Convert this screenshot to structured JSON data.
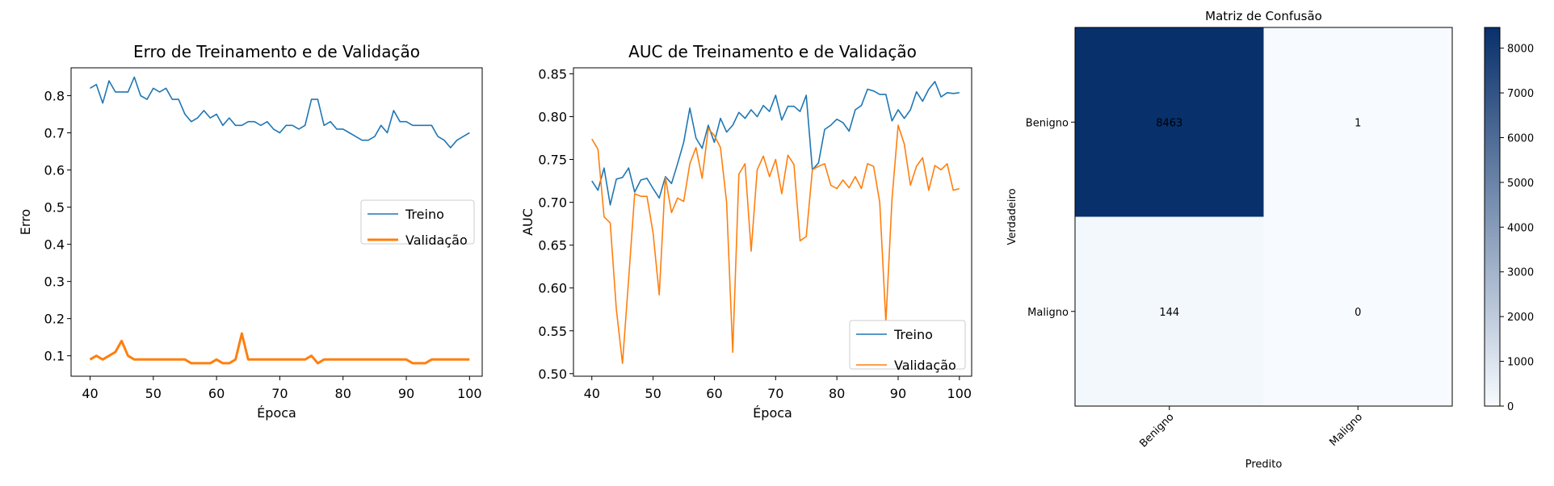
{
  "chart_data": [
    {
      "type": "line",
      "title": "Erro de Treinamento e de Validação",
      "xlabel": "Época",
      "ylabel": "Erro",
      "xlim": [
        37,
        102
      ],
      "ylim": [
        0.045,
        0.875
      ],
      "xticks": [
        40,
        50,
        60,
        70,
        80,
        90,
        100
      ],
      "yticks": [
        0.1,
        0.2,
        0.3,
        0.4,
        0.5,
        0.6,
        0.7,
        0.8
      ],
      "legend_position": "center-right",
      "grid": false,
      "x": [
        40,
        41,
        42,
        43,
        44,
        45,
        46,
        47,
        48,
        49,
        50,
        51,
        52,
        53,
        54,
        55,
        56,
        57,
        58,
        59,
        60,
        61,
        62,
        63,
        64,
        65,
        66,
        67,
        68,
        69,
        70,
        71,
        72,
        73,
        74,
        75,
        76,
        77,
        78,
        79,
        80,
        81,
        82,
        83,
        84,
        85,
        86,
        87,
        88,
        89,
        90,
        91,
        92,
        93,
        94,
        95,
        96,
        97,
        98,
        99,
        100
      ],
      "series": [
        {
          "name": "Treino",
          "color": "#1f77b4",
          "width": 1.6,
          "values": [
            0.82,
            0.83,
            0.78,
            0.84,
            0.81,
            0.81,
            0.81,
            0.85,
            0.8,
            0.79,
            0.82,
            0.81,
            0.82,
            0.79,
            0.79,
            0.75,
            0.73,
            0.74,
            0.76,
            0.74,
            0.75,
            0.72,
            0.74,
            0.72,
            0.72,
            0.73,
            0.73,
            0.72,
            0.73,
            0.71,
            0.7,
            0.72,
            0.72,
            0.71,
            0.72,
            0.79,
            0.79,
            0.72,
            0.73,
            0.71,
            0.71,
            0.7,
            0.69,
            0.68,
            0.68,
            0.69,
            0.72,
            0.7,
            0.76,
            0.73,
            0.73,
            0.72,
            0.72,
            0.72,
            0.72,
            0.69,
            0.68,
            0.66,
            0.68,
            0.69,
            0.7
          ]
        },
        {
          "name": "Validação",
          "color": "#ff7f0e",
          "width": 3,
          "values": [
            0.09,
            0.1,
            0.09,
            0.1,
            0.11,
            0.14,
            0.1,
            0.09,
            0.09,
            0.09,
            0.09,
            0.09,
            0.09,
            0.09,
            0.09,
            0.09,
            0.08,
            0.08,
            0.08,
            0.08,
            0.09,
            0.08,
            0.08,
            0.09,
            0.16,
            0.09,
            0.09,
            0.09,
            0.09,
            0.09,
            0.09,
            0.09,
            0.09,
            0.09,
            0.09,
            0.1,
            0.08,
            0.09,
            0.09,
            0.09,
            0.09,
            0.09,
            0.09,
            0.09,
            0.09,
            0.09,
            0.09,
            0.09,
            0.09,
            0.09,
            0.09,
            0.08,
            0.08,
            0.08,
            0.09,
            0.09,
            0.09,
            0.09,
            0.09,
            0.09,
            0.09
          ]
        }
      ]
    },
    {
      "type": "line",
      "title": "AUC de Treinamento e de Validação",
      "xlabel": "Época",
      "ylabel": "AUC",
      "xlim": [
        37,
        102
      ],
      "ylim": [
        0.497,
        0.857
      ],
      "xticks": [
        40,
        50,
        60,
        70,
        80,
        90,
        100
      ],
      "yticks": [
        0.5,
        0.55,
        0.6,
        0.65,
        0.7,
        0.75,
        0.8,
        0.85
      ],
      "legend_position": "lower-right",
      "grid": false,
      "x": [
        40,
        41,
        42,
        43,
        44,
        45,
        46,
        47,
        48,
        49,
        50,
        51,
        52,
        53,
        54,
        55,
        56,
        57,
        58,
        59,
        60,
        61,
        62,
        63,
        64,
        65,
        66,
        67,
        68,
        69,
        70,
        71,
        72,
        73,
        74,
        75,
        76,
        77,
        78,
        79,
        80,
        81,
        82,
        83,
        84,
        85,
        86,
        87,
        88,
        89,
        90,
        91,
        92,
        93,
        94,
        95,
        96,
        97,
        98,
        99,
        100
      ],
      "series": [
        {
          "name": "Treino",
          "color": "#1f77b4",
          "width": 1.6,
          "values": [
            0.725,
            0.714,
            0.74,
            0.697,
            0.727,
            0.729,
            0.74,
            0.712,
            0.726,
            0.728,
            0.716,
            0.705,
            0.73,
            0.722,
            0.745,
            0.77,
            0.81,
            0.775,
            0.763,
            0.79,
            0.77,
            0.798,
            0.782,
            0.79,
            0.805,
            0.798,
            0.808,
            0.8,
            0.813,
            0.806,
            0.825,
            0.796,
            0.812,
            0.812,
            0.806,
            0.825,
            0.738,
            0.746,
            0.785,
            0.79,
            0.797,
            0.793,
            0.783,
            0.808,
            0.813,
            0.832,
            0.83,
            0.826,
            0.826,
            0.795,
            0.808,
            0.798,
            0.808,
            0.829,
            0.818,
            0.832,
            0.841,
            0.823,
            0.828,
            0.827,
            0.828
          ]
        },
        {
          "name": "Validação",
          "color": "#ff7f0e",
          "width": 1.6,
          "values": [
            0.774,
            0.762,
            0.683,
            0.676,
            0.575,
            0.512,
            0.61,
            0.71,
            0.707,
            0.707,
            0.664,
            0.592,
            0.729,
            0.688,
            0.705,
            0.701,
            0.745,
            0.764,
            0.728,
            0.786,
            0.778,
            0.764,
            0.7,
            0.525,
            0.733,
            0.745,
            0.643,
            0.738,
            0.754,
            0.73,
            0.75,
            0.71,
            0.755,
            0.744,
            0.655,
            0.66,
            0.738,
            0.742,
            0.745,
            0.72,
            0.716,
            0.726,
            0.717,
            0.73,
            0.716,
            0.745,
            0.742,
            0.7,
            0.56,
            0.704,
            0.79,
            0.768,
            0.72,
            0.742,
            0.752,
            0.714,
            0.743,
            0.738,
            0.745,
            0.714,
            0.716
          ]
        }
      ]
    },
    {
      "type": "heatmap",
      "title": "Matriz de Confusão",
      "xlabel": "Predito",
      "ylabel": "Verdadeiro",
      "row_labels": [
        "Benigno",
        "Maligno"
      ],
      "col_labels": [
        "Benigno",
        "Maligno"
      ],
      "values": [
        [
          8463,
          1
        ],
        [
          144,
          0
        ]
      ],
      "colorbar_ticks": [
        0,
        1000,
        2000,
        3000,
        4000,
        5000,
        6000,
        7000,
        8000
      ],
      "colormap": "Blues",
      "dark_color": "#08306b",
      "light_color": "#f7fbff"
    }
  ]
}
